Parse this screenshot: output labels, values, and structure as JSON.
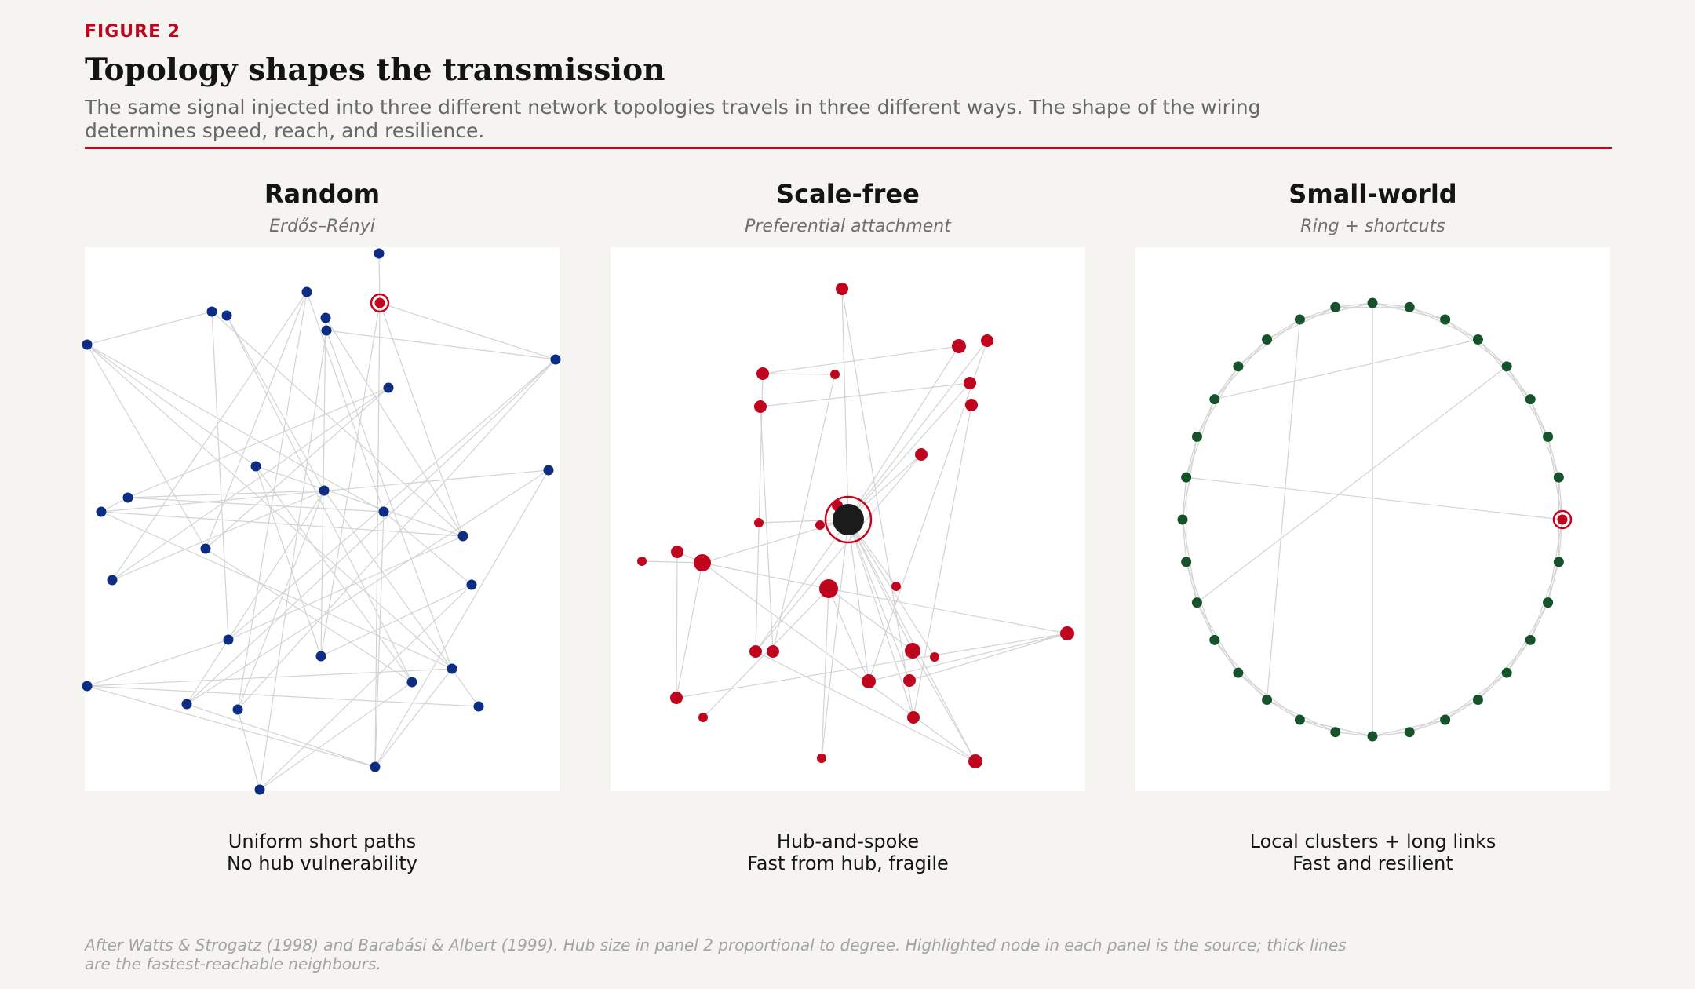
{
  "header": {
    "figure_label": "FIGURE 2",
    "title": "Topology shapes the transmission",
    "subtitle": "The same signal injected into three different network topologies travels in three different ways. The shape of the wiring determines speed, reach, and resilience."
  },
  "colors": {
    "accent": "#c0061e",
    "random_node": "#0c2d83",
    "scalefree_node": "#c0061e",
    "hub": "#1b1b1b",
    "smallworld_node": "#17532a",
    "edge": "#d3d3d3",
    "panel_bg": "#ffffff",
    "page_bg": "#f5f4f0"
  },
  "panels": [
    {
      "id": "random",
      "title": "Random",
      "subtitle": "Erdős–Rényi",
      "caption_line1": "Uniform short paths",
      "caption_line2": "No hub vulnerability",
      "node_count": 32,
      "source_node": "highlighted with red ring"
    },
    {
      "id": "scale-free",
      "title": "Scale-free",
      "subtitle": "Preferential attachment",
      "caption_line1": "Hub-and-spoke",
      "caption_line2": "Fast from hub, fragile",
      "node_count": 32,
      "source_node": "central hub, black with red ring"
    },
    {
      "id": "small-world",
      "title": "Small-world",
      "subtitle": "Ring + shortcuts",
      "caption_line1": "Local clusters + long links",
      "caption_line2": "Fast and resilient",
      "node_count": 32,
      "source_node": "rightmost ring node, red with ring"
    }
  ],
  "footnote": "After Watts & Strogatz (1998) and Barabási & Albert (1999). Hub size in panel 2 proportional to degree. Highlighted node in each panel is the source; thick lines are the fastest-reachable neighbours."
}
